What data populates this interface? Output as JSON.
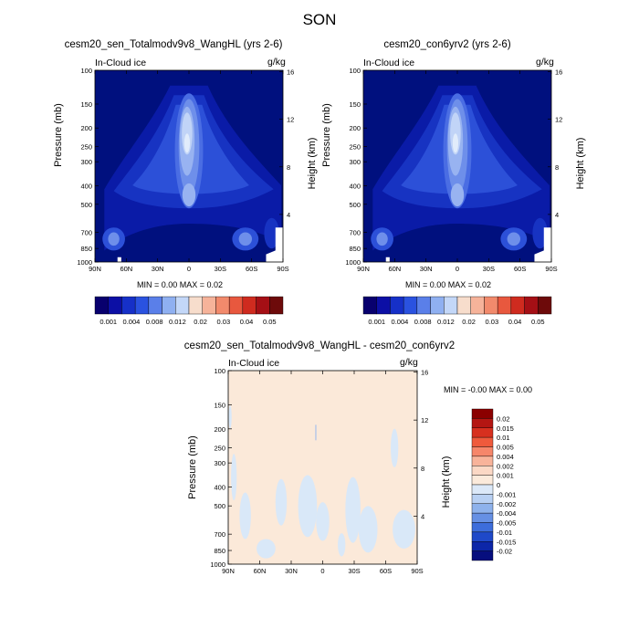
{
  "title": "SON",
  "colors": {
    "bg_level": "#0b1f8f",
    "ref_levels": [
      "#00107e",
      "#0a1ba7",
      "#1733c2",
      "#2c50d8",
      "#4a6de3",
      "#6e8fea",
      "#98b3f1",
      "#c1d4f7",
      "#e1ecfb"
    ],
    "ref_colorbar": [
      "#08006e",
      "#0c0fa5",
      "#1630c8",
      "#2a52e0",
      "#5a7fe9",
      "#8fb0f1",
      "#c3d7f8",
      "#f7ddcc",
      "#f6b39a",
      "#f28a6c",
      "#e8583e",
      "#cf2b1f",
      "#a50f15",
      "#6d0a0a"
    ],
    "diff_colorbar": [
      "#8b0000",
      "#b41612",
      "#d7301f",
      "#ef5a3c",
      "#f6866a",
      "#f8b39a",
      "#fbd8c5",
      "#fbeadb",
      "#dbe8f8",
      "#b8d0f3",
      "#8eb2ec",
      "#6690e4",
      "#3d6ddb",
      "#1f49c9",
      "#0c26a8",
      "#060e7e"
    ],
    "diff_fill": "#fbe9d9",
    "diff_neg": "#d9e8f8"
  },
  "panels": [
    {
      "id": "sen",
      "title": "cesm20_sen_Totalmodv9v8_WangHL (yrs 2-6)",
      "left_label": "In-Cloud ice",
      "units": "g/kg",
      "ylabel_left": "Pressure (mb)",
      "ylabel_right": "Height (km)",
      "min_max": "MIN =   0.00   MAX =   0.02"
    },
    {
      "id": "con",
      "title": "cesm20_con6yrv2 (yrs 2-6)",
      "left_label": "In-Cloud ice",
      "units": "g/kg",
      "ylabel_left": "Pressure (mb)",
      "ylabel_right": "Height (km)",
      "min_max": "MIN =   0.00   MAX =   0.02"
    },
    {
      "id": "diff",
      "title": "cesm20_sen_Totalmodv9v8_WangHL - cesm20_con6yrv2",
      "left_label": "In-Cloud ice",
      "units": "g/kg",
      "ylabel_left": "Pressure (mb)",
      "ylabel_right": "Height (km)",
      "min_max": "MIN =  -0.00   MAX =   0.00"
    }
  ],
  "chart_data": [
    {
      "type": "heatmap",
      "title": "cesm20_sen_Totalmodv9v8_WangHL (yrs 2-6)",
      "variable": "In-Cloud ice",
      "units": "g/kg",
      "x_ticks": [
        "90N",
        "60N",
        "30N",
        "0",
        "30S",
        "60S",
        "90S"
      ],
      "y_ticks_pressure": [
        "100",
        "150",
        "200",
        "250",
        "300",
        "400",
        "500",
        "700",
        "850",
        "1000"
      ],
      "y_ticks_height": [
        "16",
        "12",
        "8",
        "4"
      ],
      "xlim": [
        "90N",
        "90S"
      ],
      "ylim_mb": [
        1000,
        100
      ],
      "colorbar_labels": [
        "0.001",
        "0.004",
        "0.008",
        "0.012",
        "0.02",
        "0.03",
        "0.04",
        "0.05"
      ],
      "min": 0.0,
      "max": 0.02
    },
    {
      "type": "heatmap",
      "title": "cesm20_con6yrv2 (yrs 2-6)",
      "variable": "In-Cloud ice",
      "units": "g/kg",
      "x_ticks": [
        "90N",
        "60N",
        "30N",
        "0",
        "30S",
        "60S",
        "90S"
      ],
      "y_ticks_pressure": [
        "100",
        "150",
        "200",
        "250",
        "300",
        "400",
        "500",
        "700",
        "850",
        "1000"
      ],
      "y_ticks_height": [
        "16",
        "12",
        "8",
        "4"
      ],
      "xlim": [
        "90N",
        "90S"
      ],
      "ylim_mb": [
        1000,
        100
      ],
      "colorbar_labels": [
        "0.001",
        "0.004",
        "0.008",
        "0.012",
        "0.02",
        "0.03",
        "0.04",
        "0.05"
      ],
      "min": 0.0,
      "max": 0.02
    },
    {
      "type": "heatmap",
      "title": "cesm20_sen_Totalmodv9v8_WangHL - cesm20_con6yrv2",
      "variable": "In-Cloud ice",
      "units": "g/kg",
      "x_ticks": [
        "90N",
        "60N",
        "30N",
        "0",
        "30S",
        "60S",
        "90S"
      ],
      "y_ticks_pressure": [
        "100",
        "150",
        "200",
        "250",
        "300",
        "400",
        "500",
        "700",
        "850",
        "1000"
      ],
      "y_ticks_height": [
        "16",
        "12",
        "8",
        "4"
      ],
      "xlim": [
        "90N",
        "90S"
      ],
      "ylim_mb": [
        1000,
        100
      ],
      "colorbar_labels": [
        "0.02",
        "0.015",
        "0.01",
        "0.005",
        "0.004",
        "0.002",
        "0.001",
        "0",
        "-0.001",
        "-0.002",
        "-0.004",
        "-0.005",
        "-0.01",
        "-0.015",
        "-0.02"
      ],
      "min": -0.0,
      "max": 0.0
    }
  ]
}
